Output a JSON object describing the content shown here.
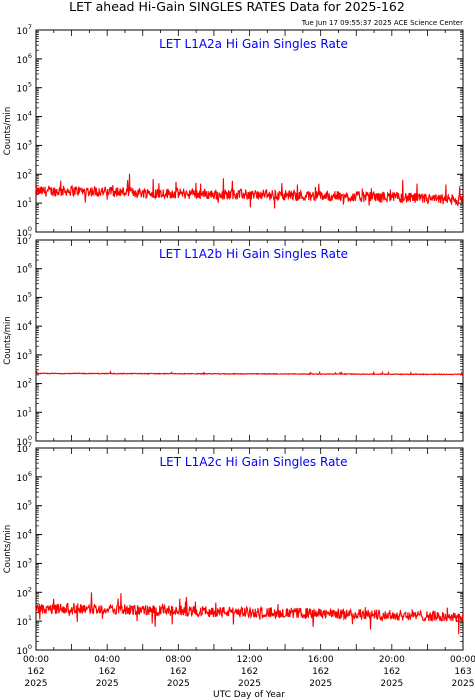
{
  "figure": {
    "title": "LET ahead Hi-Gain SINGLES RATES Data for 2025-162",
    "timestamp": "Tue Jun 17 09:55:37 2025 ACE Science Center",
    "xlabel": "UTC Day of Year",
    "ylabel": "Counts/min",
    "colors": {
      "panel_title": "#0000ff",
      "series": "#ff0000",
      "axes": "#000000",
      "background": "#ffffff"
    }
  },
  "chart_data": [
    {
      "type": "line",
      "title": "LET L1A2a Hi Gain Singles Rate",
      "ylabel": "Counts/min",
      "yscale": "log",
      "ylim": [
        1,
        10000000
      ],
      "ytick_exponents": [
        "0",
        "1",
        "2",
        "3",
        "4",
        "5",
        "6",
        "7"
      ],
      "xlim": [
        0,
        24
      ],
      "series": [
        {
          "x": [
            0,
            1,
            2,
            3,
            4,
            5,
            6,
            7,
            8,
            9,
            10,
            11,
            12,
            13,
            14,
            15,
            16,
            17,
            18,
            19,
            20,
            21,
            22,
            23,
            24
          ],
          "values": [
            25,
            26,
            27,
            26,
            25,
            24,
            23,
            22,
            22,
            21,
            20,
            20,
            20,
            19,
            19,
            18,
            18,
            17,
            17,
            16,
            16,
            15,
            14,
            13,
            12
          ],
          "noise": "high"
        }
      ]
    },
    {
      "type": "line",
      "title": "LET L1A2b Hi Gain Singles Rate",
      "ylabel": "Counts/min",
      "yscale": "log",
      "ylim": [
        1,
        10000000
      ],
      "ytick_exponents": [
        "0",
        "1",
        "2",
        "3",
        "4",
        "5",
        "6",
        "7"
      ],
      "xlim": [
        0,
        24
      ],
      "series": [
        {
          "x": [
            0,
            1,
            2,
            3,
            4,
            5,
            6,
            7,
            8,
            9,
            10,
            11,
            12,
            13,
            14,
            15,
            16,
            17,
            18,
            19,
            20,
            21,
            22,
            23,
            24
          ],
          "values": [
            225,
            225,
            224,
            224,
            223,
            222,
            222,
            221,
            220,
            220,
            219,
            218,
            218,
            217,
            216,
            216,
            215,
            214,
            214,
            213,
            212,
            212,
            211,
            210,
            210
          ],
          "noise": "low"
        }
      ]
    },
    {
      "type": "line",
      "title": "LET L1A2c Hi Gain Singles Rate",
      "ylabel": "Counts/min",
      "yscale": "log",
      "ylim": [
        1,
        10000000
      ],
      "ytick_exponents": [
        "0",
        "1",
        "2",
        "3",
        "4",
        "5",
        "6",
        "7"
      ],
      "xlim": [
        0,
        24
      ],
      "xticks": [
        {
          "x": 0,
          "time": "00:00",
          "day": "162",
          "year": "2025"
        },
        {
          "x": 4,
          "time": "04:00",
          "day": "162",
          "year": "2025"
        },
        {
          "x": 8,
          "time": "08:00",
          "day": "162",
          "year": "2025"
        },
        {
          "x": 12,
          "time": "12:00",
          "day": "162",
          "year": "2025"
        },
        {
          "x": 16,
          "time": "16:00",
          "day": "162",
          "year": "2025"
        },
        {
          "x": 20,
          "time": "20:00",
          "day": "162",
          "year": "2025"
        },
        {
          "x": 24,
          "time": "00:00",
          "day": "163",
          "year": "2025"
        }
      ],
      "series": [
        {
          "x": [
            0,
            1,
            2,
            3,
            4,
            5,
            6,
            7,
            8,
            9,
            10,
            11,
            12,
            13,
            14,
            15,
            16,
            17,
            18,
            19,
            20,
            21,
            22,
            23,
            24
          ],
          "values": [
            26,
            27,
            28,
            27,
            26,
            25,
            24,
            23,
            22,
            22,
            21,
            21,
            20,
            20,
            19,
            19,
            18,
            18,
            17,
            17,
            16,
            16,
            15,
            14,
            13
          ],
          "noise": "high"
        }
      ]
    }
  ]
}
